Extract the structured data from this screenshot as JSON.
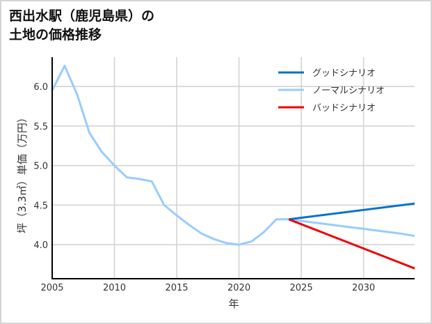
{
  "title": {
    "line1": "西出水駅（鹿児島県）の",
    "line2": "土地の価格推移"
  },
  "colors": {
    "good": "#0a72c9",
    "normal": "#99ccff",
    "bad": "#ee0000",
    "grid": "#d3d3d3",
    "axis": "#000000",
    "border": "#d4d4d4"
  },
  "chart_data": {
    "type": "line",
    "title": "西出水駅（鹿児島県）の土地の価格推移",
    "xlabel": "年",
    "ylabel": "坪（3.3㎡）単価（万円）",
    "xlim": [
      2005,
      2034.1
    ],
    "ylim": [
      3.57,
      6.37
    ],
    "xticks": [
      2005,
      2010,
      2015,
      2020,
      2025,
      2030
    ],
    "yticks": [
      4.0,
      4.5,
      5.0,
      5.5,
      6.0
    ],
    "ytick_labels": [
      "4.0",
      "4.5",
      "5.0",
      "5.5",
      "6.0"
    ],
    "grid": true,
    "legend_position": "upper right",
    "series": [
      {
        "name": "グッドシナリオ",
        "key": "good",
        "x": [
          2024,
          2034.1
        ],
        "values": [
          4.32,
          4.52
        ]
      },
      {
        "name": "ノーマルシナリオ",
        "key": "normal",
        "x": [
          2005,
          2006,
          2007,
          2008,
          2009,
          2010,
          2011,
          2012,
          2013,
          2014,
          2015,
          2016,
          2017,
          2018,
          2019,
          2020,
          2021,
          2022,
          2023,
          2024,
          2025,
          2026,
          2027,
          2028,
          2029,
          2030,
          2031,
          2032,
          2033,
          2034.1
        ],
        "values": [
          5.95,
          6.26,
          5.9,
          5.41,
          5.17,
          5.0,
          4.85,
          4.83,
          4.8,
          4.5,
          4.37,
          4.25,
          4.14,
          4.07,
          4.02,
          4.0,
          4.04,
          4.16,
          4.32,
          4.32,
          4.3,
          4.28,
          4.26,
          4.24,
          4.22,
          4.2,
          4.18,
          4.16,
          4.14,
          4.11
        ]
      },
      {
        "name": "バッドシナリオ",
        "key": "bad",
        "x": [
          2024,
          2034.1
        ],
        "values": [
          4.32,
          3.7
        ]
      }
    ],
    "legend": [
      "グッドシナリオ",
      "ノーマルシナリオ",
      "バッドシナリオ"
    ]
  }
}
